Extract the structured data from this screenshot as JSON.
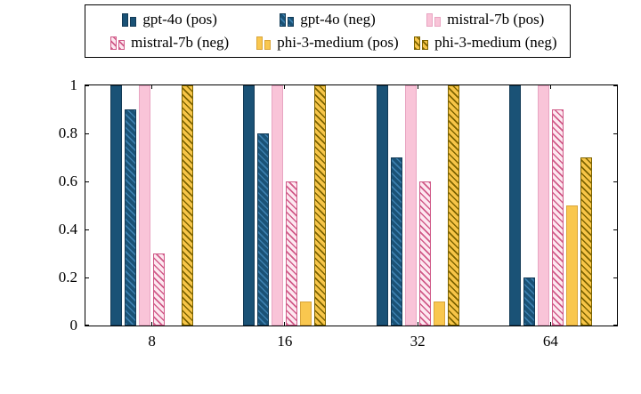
{
  "figure": {
    "background": "#ffffff",
    "border_color": "#000000"
  },
  "chart_data": {
    "type": "bar",
    "title": "",
    "xlabel": "",
    "ylabel": "",
    "grid": false,
    "legend_position": "top",
    "categories": [
      "8",
      "16",
      "32",
      "64"
    ],
    "ylim": [
      0,
      1
    ],
    "yticks": [
      0,
      0.2,
      0.4,
      0.6,
      0.8,
      1
    ],
    "ytick_labels": [
      "0",
      "0.2",
      "0.4",
      "0.6",
      "0.8",
      "1"
    ],
    "series": [
      {
        "name": "gpt-4o (pos)",
        "values": [
          1,
          1,
          1,
          1
        ],
        "pattern": "solid",
        "color": "#1a5276",
        "hatch_color": null,
        "border_color": "#123a56"
      },
      {
        "name": "gpt-4o (neg)",
        "values": [
          0.9,
          0.8,
          0.7,
          0.2
        ],
        "pattern": "hatch",
        "color": "#1a5276",
        "hatch_color": "#3c7fae",
        "border_color": "#123a56"
      },
      {
        "name": "mistral-7b (pos)",
        "values": [
          1,
          1,
          1,
          1
        ],
        "pattern": "solid",
        "color": "#f9c4d8",
        "hatch_color": null,
        "border_color": "#e8a5c2"
      },
      {
        "name": "mistral-7b (neg)",
        "values": [
          0.3,
          0.6,
          0.6,
          0.9
        ],
        "pattern": "hatch",
        "color": "#fde8f0",
        "hatch_color": "#d05a88",
        "border_color": "#d05a88"
      },
      {
        "name": "phi-3-medium (pos)",
        "values": [
          0,
          0.1,
          0.1,
          0.5
        ],
        "pattern": "solid",
        "color": "#f9c74f",
        "hatch_color": null,
        "border_color": "#d9a53a"
      },
      {
        "name": "phi-3-medium (neg)",
        "values": [
          1,
          1,
          1,
          0.7
        ],
        "pattern": "hatch",
        "color": "#f7c548",
        "hatch_color": "#7c6300",
        "border_color": "#7c6300"
      }
    ]
  }
}
